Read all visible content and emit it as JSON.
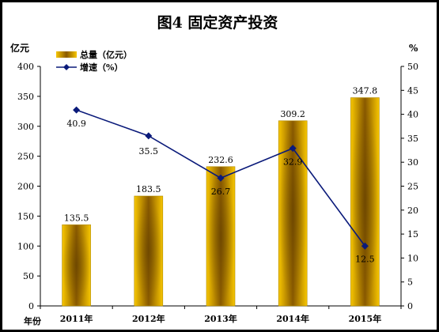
{
  "title": "图4   固定资产投资",
  "chart_data": {
    "type": "bar",
    "categories": [
      "2011年",
      "2012年",
      "2013年",
      "2014年",
      "2015年"
    ],
    "series": [
      {
        "name": "总量（亿元）",
        "kind": "bar",
        "axis": "left",
        "values": [
          135.5,
          183.5,
          232.6,
          309.2,
          347.8
        ],
        "labels": [
          "135.5",
          "183.5",
          "232.6",
          "309.2",
          "347.8"
        ],
        "color": "#F2C200"
      },
      {
        "name": "增速（%）",
        "kind": "line",
        "axis": "right",
        "values": [
          40.9,
          35.5,
          26.7,
          32.9,
          12.5
        ],
        "labels": [
          "40.9",
          "35.5",
          "26.7",
          "32.9",
          "12.5"
        ],
        "color": "#0A1A7A"
      }
    ],
    "left_axis": {
      "unit": "亿元",
      "range": [
        0,
        400
      ],
      "ticks": [
        0,
        50,
        100,
        150,
        200,
        250,
        300,
        350,
        400
      ]
    },
    "right_axis": {
      "unit": "%",
      "range": [
        0,
        50
      ],
      "ticks": [
        0,
        5,
        10,
        15,
        20,
        25,
        30,
        35,
        40,
        45,
        50
      ]
    },
    "xlabel": "年份",
    "grid": false,
    "legend_position": "top-left"
  }
}
